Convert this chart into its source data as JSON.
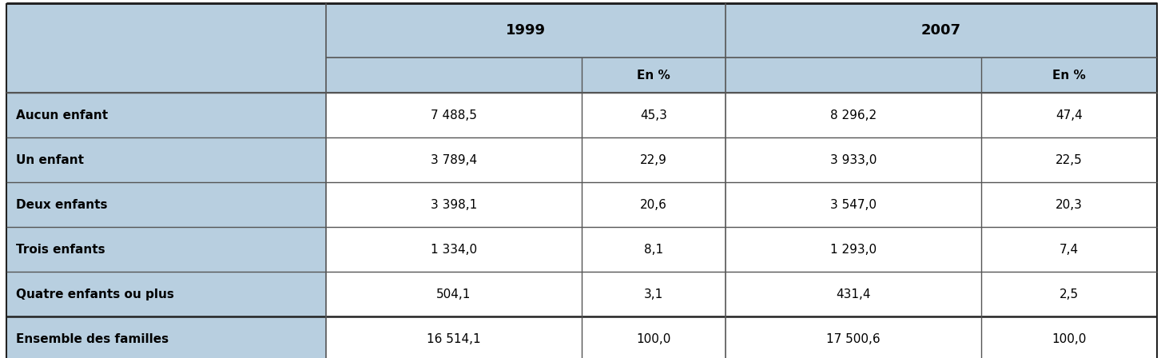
{
  "header_bg": "#b8cfe0",
  "data_bg": "#ffffff",
  "label_col_bg": "#b8cfe0",
  "border_color": "#555555",
  "border_color_thick": "#222222",
  "rows": [
    [
      "Aucun enfant",
      "7 488,5",
      "45,3",
      "8 296,2",
      "47,4"
    ],
    [
      "Un enfant",
      "3 789,4",
      "22,9",
      "3 933,0",
      "22,5"
    ],
    [
      "Deux enfants",
      "3 398,1",
      "20,6",
      "3 547,0",
      "20,3"
    ],
    [
      "Trois enfants",
      "1 334,0",
      "8,1",
      "1 293,0",
      "7,4"
    ],
    [
      "Quatre enfants ou plus",
      "504,1",
      "3,1",
      "431,4",
      "2,5"
    ],
    [
      "Ensemble des familles",
      "16 514,1",
      "100,0",
      "17 500,6",
      "100,0"
    ]
  ],
  "figure_width": 14.53,
  "figure_height": 4.48,
  "dpi": 100
}
